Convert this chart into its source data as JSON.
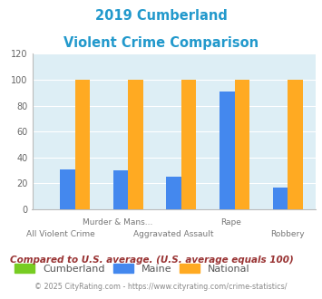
{
  "title_line1": "2019 Cumberland",
  "title_line2": "Violent Crime Comparison",
  "categories": [
    "All Violent Crime",
    "Murder & Mans...",
    "Aggravated Assault",
    "Rape",
    "Robbery"
  ],
  "top_labels": [
    "",
    "Murder & Mans...",
    "",
    "Rape",
    ""
  ],
  "bottom_labels": [
    "All Violent Crime",
    "",
    "Aggravated Assault",
    "",
    "Robbery"
  ],
  "cumberland_values": [
    0,
    0,
    0,
    0,
    0
  ],
  "maine_values": [
    31,
    30,
    25,
    91,
    17
  ],
  "national_values": [
    100,
    100,
    100,
    100,
    100
  ],
  "cumberland_color": "#77cc22",
  "maine_color": "#4488ee",
  "national_color": "#ffaa22",
  "title_color": "#2299cc",
  "plot_bg_color": "#ddeef5",
  "ylim": [
    0,
    120
  ],
  "yticks": [
    0,
    20,
    40,
    60,
    80,
    100,
    120
  ],
  "footnote1": "Compared to U.S. average. (U.S. average equals 100)",
  "footnote2": "© 2025 CityRating.com - https://www.cityrating.com/crime-statistics/",
  "footnote1_color": "#993333",
  "footnote2_color": "#888888",
  "legend_labels": [
    "Cumberland",
    "Maine",
    "National"
  ],
  "bar_width": 0.28
}
